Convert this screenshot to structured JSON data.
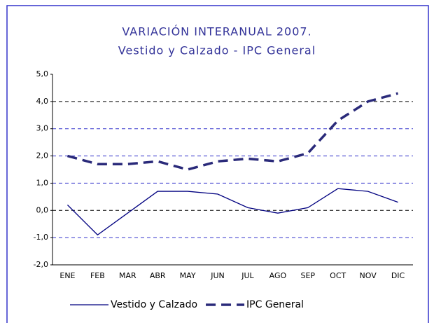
{
  "chart_data": {
    "type": "line",
    "title": "VARIACIÓN INTERANUAL 2007.",
    "subtitle": "Vestido y Calzado - IPC General",
    "categories": [
      "ENE",
      "FEB",
      "MAR",
      "ABR",
      "MAY",
      "JUN",
      "JUL",
      "AGO",
      "SEP",
      "OCT",
      "NOV",
      "DIC"
    ],
    "series": [
      {
        "name": "Vestido y Calzado",
        "color": "#000080",
        "values": [
          0.2,
          -0.9,
          -0.1,
          0.7,
          0.7,
          0.6,
          0.1,
          -0.1,
          0.1,
          0.8,
          0.7,
          0.3
        ]
      },
      {
        "name": "IPC General",
        "color": "#2a2a7a",
        "values": [
          2.0,
          1.7,
          1.7,
          1.8,
          1.5,
          1.8,
          1.9,
          1.8,
          2.1,
          3.3,
          4.0,
          4.3
        ]
      }
    ],
    "ylim": [
      -2,
      5
    ],
    "yticks": [
      {
        "value": -2,
        "label": "-2,0"
      },
      {
        "value": -1,
        "label": "-1,0"
      },
      {
        "value": 0,
        "label": "0,0"
      },
      {
        "value": 1,
        "label": "1,0"
      },
      {
        "value": 2,
        "label": "2,0"
      },
      {
        "value": 3,
        "label": "3,0"
      },
      {
        "value": 4,
        "label": "4,0"
      },
      {
        "value": 5,
        "label": "5,0"
      }
    ],
    "grid": true
  }
}
